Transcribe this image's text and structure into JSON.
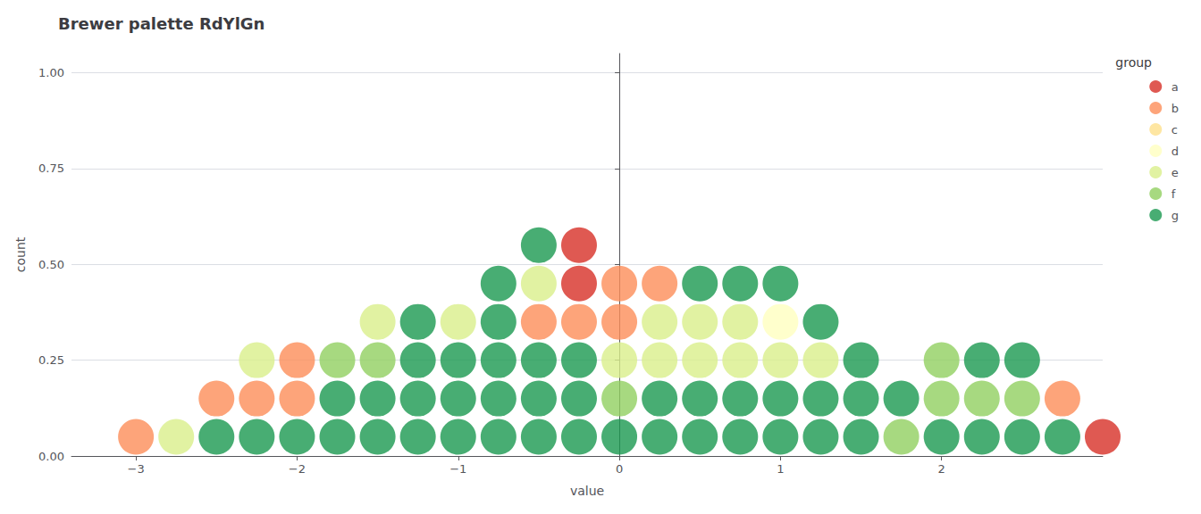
{
  "chart_data": {
    "type": "scatter",
    "title": "Brewer palette RdYlGn",
    "xlabel": "value",
    "ylabel": "count",
    "legend_title": "group",
    "xlim": [
      -3.4,
      3.0
    ],
    "ylim": [
      0.0,
      1.05
    ],
    "xticks": [
      {
        "value": -3,
        "label": "−3"
      },
      {
        "value": -2,
        "label": "−2"
      },
      {
        "value": -1,
        "label": "−1"
      },
      0,
      1,
      2
    ],
    "yticks": [
      {
        "value": 0.0,
        "label": "0.00"
      },
      0.25,
      {
        "value": 0.5,
        "label": "0.50"
      },
      0.75,
      {
        "value": 1.0,
        "label": "1.00"
      }
    ],
    "grid": "y",
    "legend": "right",
    "marker": "circle",
    "series": [
      {
        "name": "a",
        "color": "#D73027",
        "x": [
          -0.25,
          -0.25,
          3.0
        ],
        "values": [
          0.45,
          0.55,
          0.05
        ]
      },
      {
        "name": "b",
        "color": "#FC8D59",
        "x": [
          -3.0,
          -2.5,
          -2.25,
          -2.0,
          -2.0,
          -0.5,
          -0.25,
          0.0,
          0.0,
          0.25,
          2.75
        ],
        "values": [
          0.05,
          0.15,
          0.15,
          0.15,
          0.25,
          0.35,
          0.35,
          0.35,
          0.45,
          0.45,
          0.15
        ]
      },
      {
        "name": "c",
        "color": "#FEE08B",
        "x": [],
        "values": []
      },
      {
        "name": "d",
        "color": "#FFFFBF",
        "x": [
          1.0
        ],
        "values": [
          0.35
        ]
      },
      {
        "name": "e",
        "color": "#D9EF8B",
        "x": [
          -2.75,
          -2.25,
          -1.5,
          -1.0,
          -0.5,
          0.0,
          0.25,
          0.25,
          0.5,
          0.5,
          0.75,
          0.75,
          1.0,
          1.25
        ],
        "values": [
          0.05,
          0.25,
          0.35,
          0.35,
          0.45,
          0.25,
          0.25,
          0.35,
          0.25,
          0.35,
          0.25,
          0.35,
          0.25,
          0.25
        ]
      },
      {
        "name": "f",
        "color": "#91CF60",
        "x": [
          -1.75,
          -1.5,
          0.0,
          1.75,
          2.0,
          2.0,
          2.25,
          2.5
        ],
        "values": [
          0.25,
          0.25,
          0.15,
          0.05,
          0.15,
          0.25,
          0.15,
          0.15
        ]
      },
      {
        "name": "g",
        "color": "#1A9850",
        "x": [
          -2.5,
          -2.25,
          -2.0,
          -1.75,
          -1.75,
          -1.5,
          -1.5,
          -1.25,
          -1.25,
          -1.25,
          -1.25,
          -1.0,
          -1.0,
          -1.0,
          -0.75,
          -0.75,
          -0.75,
          -0.75,
          -0.75,
          -0.5,
          -0.5,
          -0.5,
          -0.5,
          -0.25,
          -0.25,
          -0.25,
          0.0,
          0.25,
          0.25,
          0.5,
          0.5,
          0.5,
          0.75,
          0.75,
          0.75,
          1.0,
          1.0,
          1.0,
          1.25,
          1.25,
          1.25,
          1.5,
          1.5,
          1.5,
          1.75,
          2.0,
          2.25,
          2.25,
          2.5,
          2.5,
          2.75
        ],
        "values": [
          0.05,
          0.05,
          0.05,
          0.05,
          0.15,
          0.05,
          0.15,
          0.05,
          0.15,
          0.25,
          0.35,
          0.05,
          0.15,
          0.25,
          0.05,
          0.15,
          0.25,
          0.35,
          0.45,
          0.05,
          0.15,
          0.25,
          0.55,
          0.05,
          0.15,
          0.25,
          0.05,
          0.05,
          0.15,
          0.05,
          0.15,
          0.45,
          0.05,
          0.15,
          0.45,
          0.05,
          0.15,
          0.45,
          0.05,
          0.15,
          0.35,
          0.05,
          0.15,
          0.25,
          0.15,
          0.05,
          0.05,
          0.25,
          0.05,
          0.25,
          0.05
        ]
      }
    ]
  }
}
